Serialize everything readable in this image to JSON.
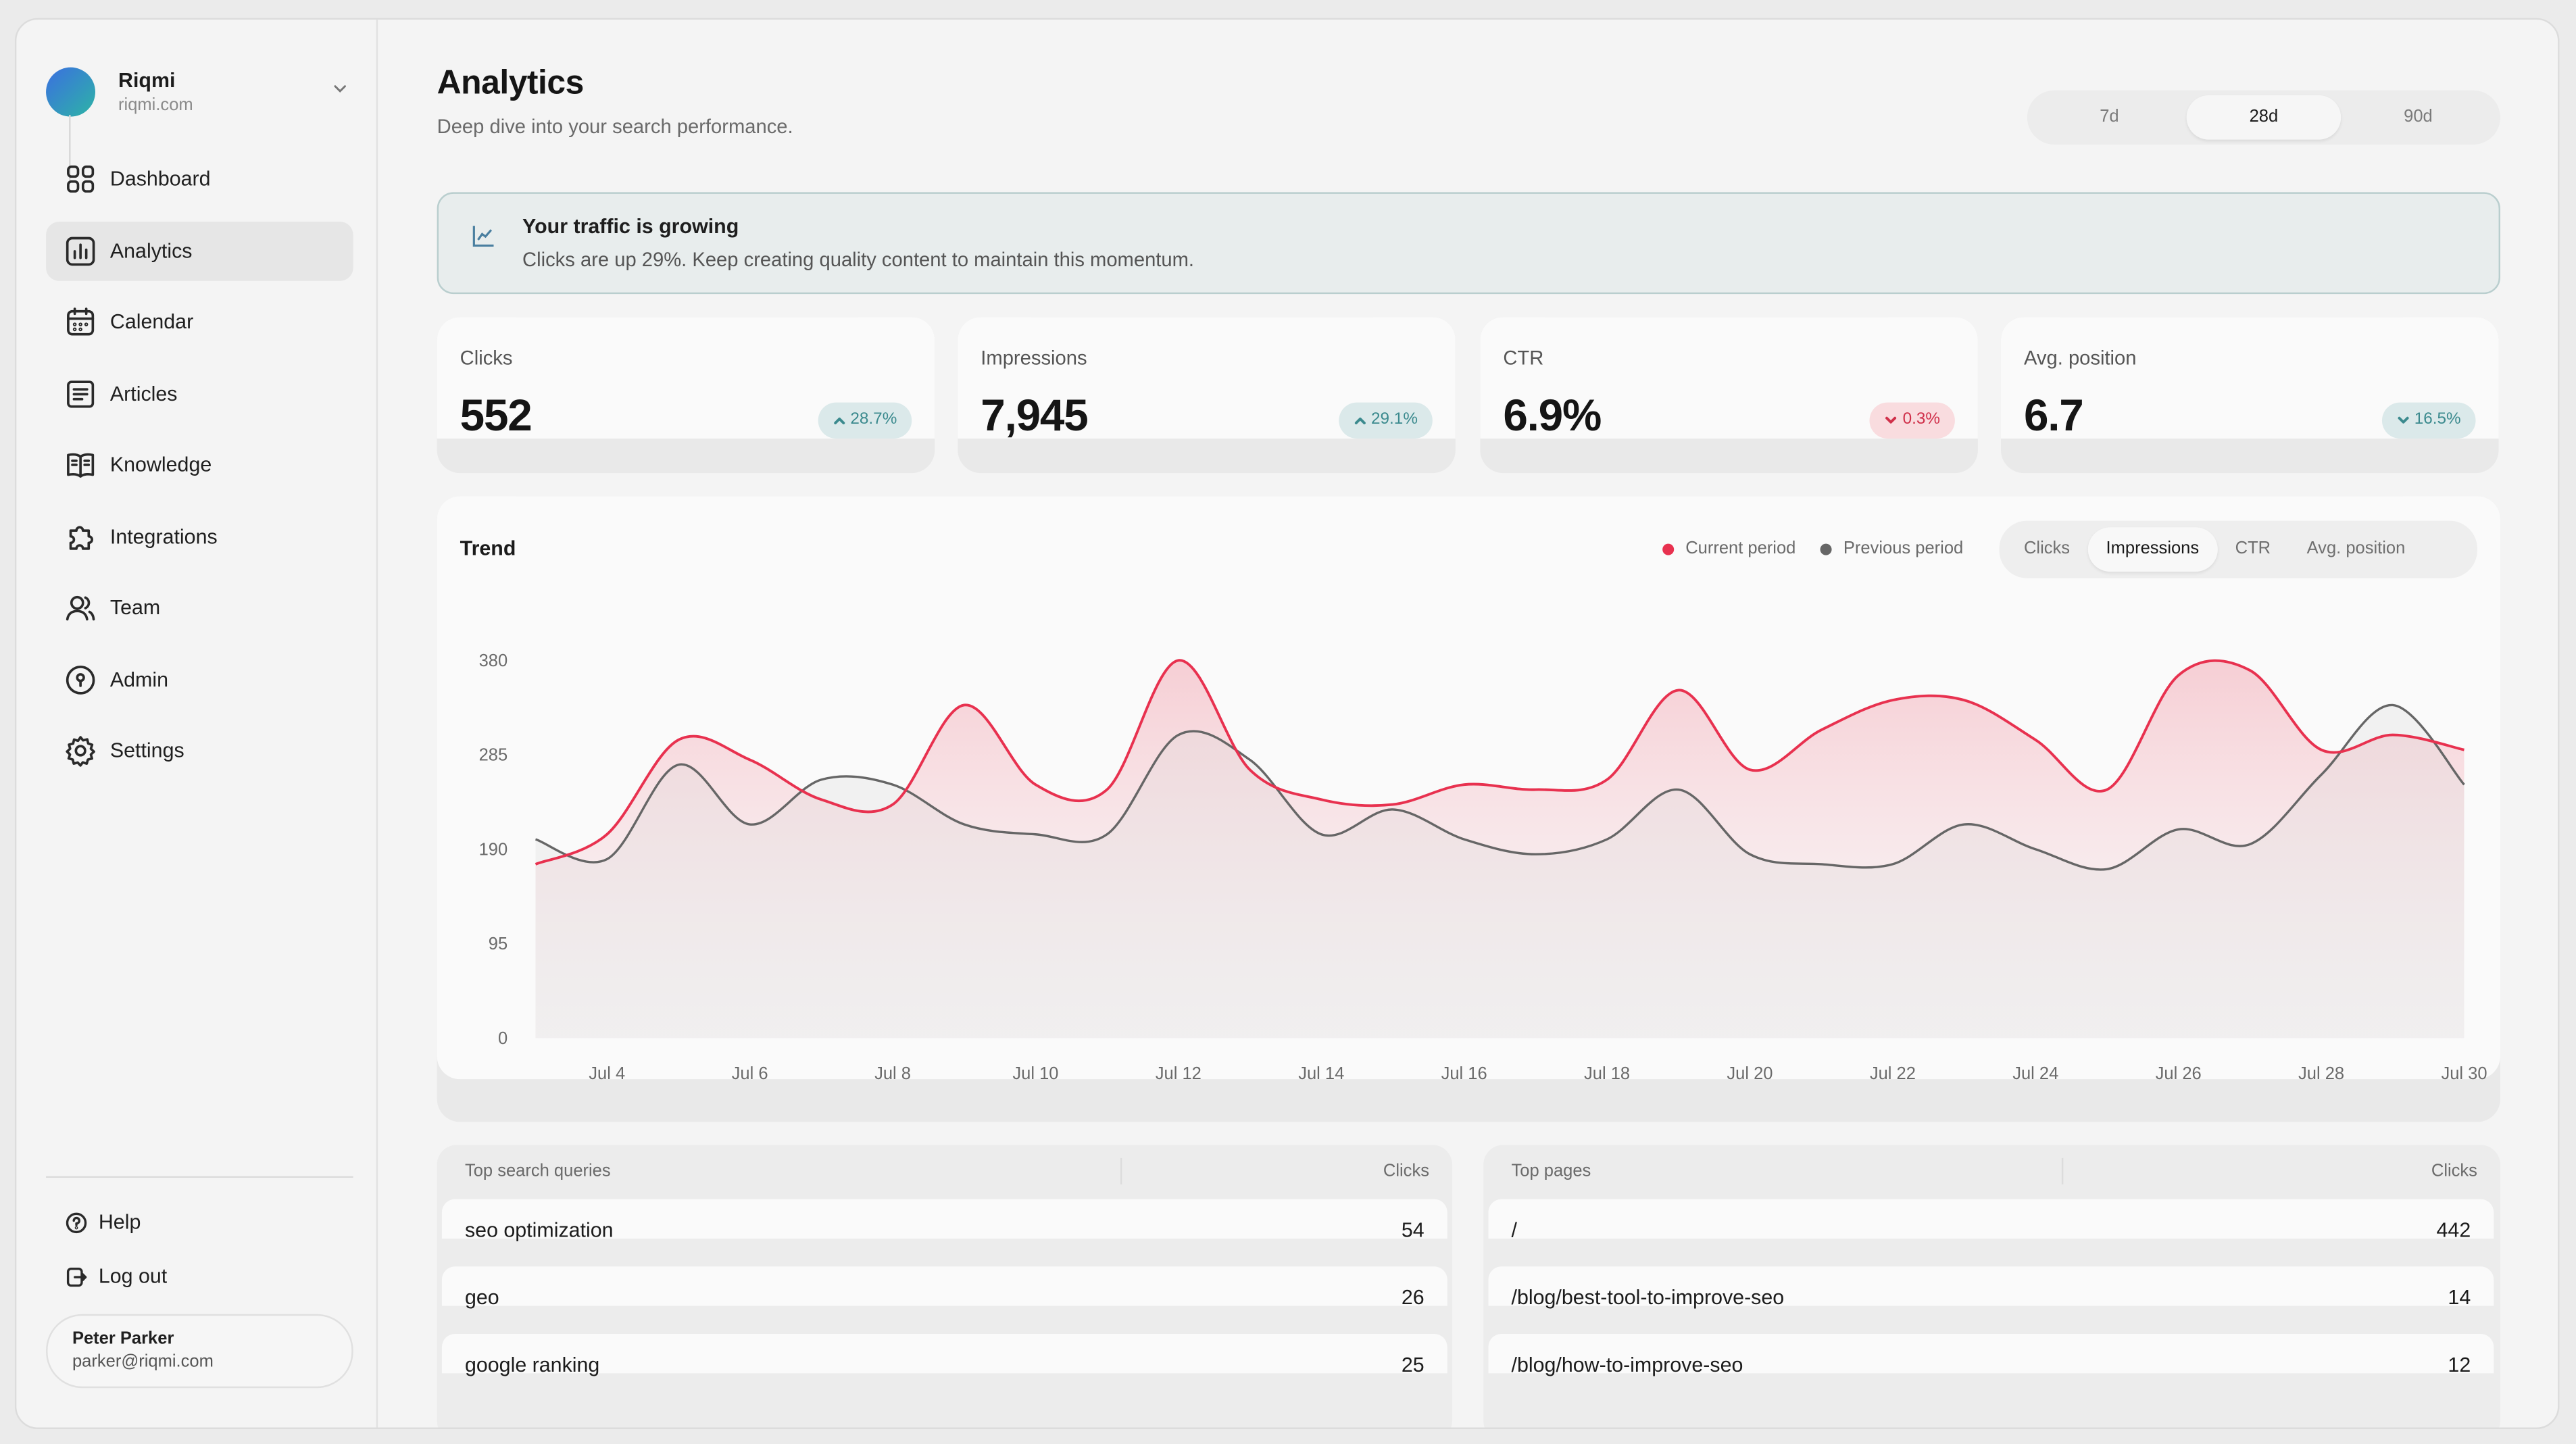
{
  "org": {
    "name": "Riqmi",
    "domain": "riqmi.com"
  },
  "nav": [
    {
      "label": "Dashboard",
      "icon": "grid-icon"
    },
    {
      "label": "Analytics",
      "icon": "bar-chart-icon",
      "active": true
    },
    {
      "label": "Calendar",
      "icon": "calendar-icon"
    },
    {
      "label": "Articles",
      "icon": "document-icon"
    },
    {
      "label": "Knowledge",
      "icon": "book-icon"
    },
    {
      "label": "Integrations",
      "icon": "puzzle-icon"
    },
    {
      "label": "Team",
      "icon": "users-icon"
    },
    {
      "label": "Admin",
      "icon": "shield-icon"
    },
    {
      "label": "Settings",
      "icon": "gear-icon"
    }
  ],
  "footer": {
    "help": "Help",
    "logout": "Log out"
  },
  "user": {
    "name": "Peter Parker",
    "email": "parker@riqmi.com"
  },
  "page": {
    "title": "Analytics",
    "subtitle": "Deep dive into your search performance."
  },
  "range": {
    "options": [
      "7d",
      "28d",
      "90d"
    ],
    "selected": "28d"
  },
  "banner": {
    "title": "Your traffic is growing",
    "text": "Clicks are up 29%. Keep creating quality content to maintain this momentum."
  },
  "stats": [
    {
      "label": "Clicks",
      "value": "552",
      "change": "28.7%",
      "direction": "up"
    },
    {
      "label": "Impressions",
      "value": "7,945",
      "change": "29.1%",
      "direction": "up"
    },
    {
      "label": "CTR",
      "value": "6.9%",
      "change": "0.3%",
      "direction": "down"
    },
    {
      "label": "Avg. position",
      "value": "6.7",
      "change": "16.5%",
      "direction": "down-good"
    }
  ],
  "colors": {
    "current": "#e8314f",
    "previous": "#666666",
    "up": "#3b8a8e",
    "down": "#d0304a"
  },
  "trend": {
    "title": "Trend",
    "legend": [
      "Current period",
      "Previous period"
    ],
    "metrics": [
      "Clicks",
      "Impressions",
      "CTR",
      "Avg. position"
    ],
    "selected_metric": "Impressions"
  },
  "chart_data": {
    "type": "area",
    "x": [
      "Jul 3",
      "Jul 4",
      "Jul 5",
      "Jul 6",
      "Jul 7",
      "Jul 8",
      "Jul 9",
      "Jul 10",
      "Jul 11",
      "Jul 12",
      "Jul 13",
      "Jul 14",
      "Jul 15",
      "Jul 16",
      "Jul 17",
      "Jul 18",
      "Jul 19",
      "Jul 20",
      "Jul 21",
      "Jul 22",
      "Jul 23",
      "Jul 24",
      "Jul 25",
      "Jul 26",
      "Jul 27",
      "Jul 28",
      "Jul 29",
      "Jul 30"
    ],
    "tick_labels": [
      "Jul 4",
      "Jul 6",
      "Jul 8",
      "Jul 10",
      "Jul 12",
      "Jul 14",
      "Jul 16",
      "Jul 18",
      "Jul 20",
      "Jul 22",
      "Jul 24",
      "Jul 26",
      "Jul 28",
      "Jul 30"
    ],
    "y_ticks": [
      0,
      95,
      190,
      285,
      380
    ],
    "ylim": [
      0,
      380
    ],
    "series": [
      {
        "name": "Current period",
        "values": [
          175,
          205,
          300,
          280,
          240,
          235,
          335,
          255,
          250,
          380,
          270,
          240,
          235,
          255,
          250,
          260,
          350,
          270,
          310,
          340,
          340,
          300,
          250,
          365,
          370,
          290,
          305,
          290
        ]
      },
      {
        "name": "Previous period",
        "values": [
          200,
          180,
          275,
          215,
          260,
          255,
          215,
          205,
          205,
          305,
          280,
          205,
          230,
          200,
          185,
          200,
          250,
          185,
          175,
          175,
          215,
          190,
          170,
          210,
          195,
          265,
          335,
          255
        ]
      }
    ]
  },
  "queries": {
    "header": [
      "Top search queries",
      "Clicks"
    ],
    "rows": [
      [
        "seo optimization",
        "54"
      ],
      [
        "geo",
        "26"
      ],
      [
        "google ranking",
        "25"
      ]
    ]
  },
  "pages": {
    "header": [
      "Top pages",
      "Clicks"
    ],
    "rows": [
      [
        "/",
        "442"
      ],
      [
        "/blog/best-tool-to-improve-seo",
        "14"
      ],
      [
        "/blog/how-to-improve-seo",
        "12"
      ]
    ]
  }
}
